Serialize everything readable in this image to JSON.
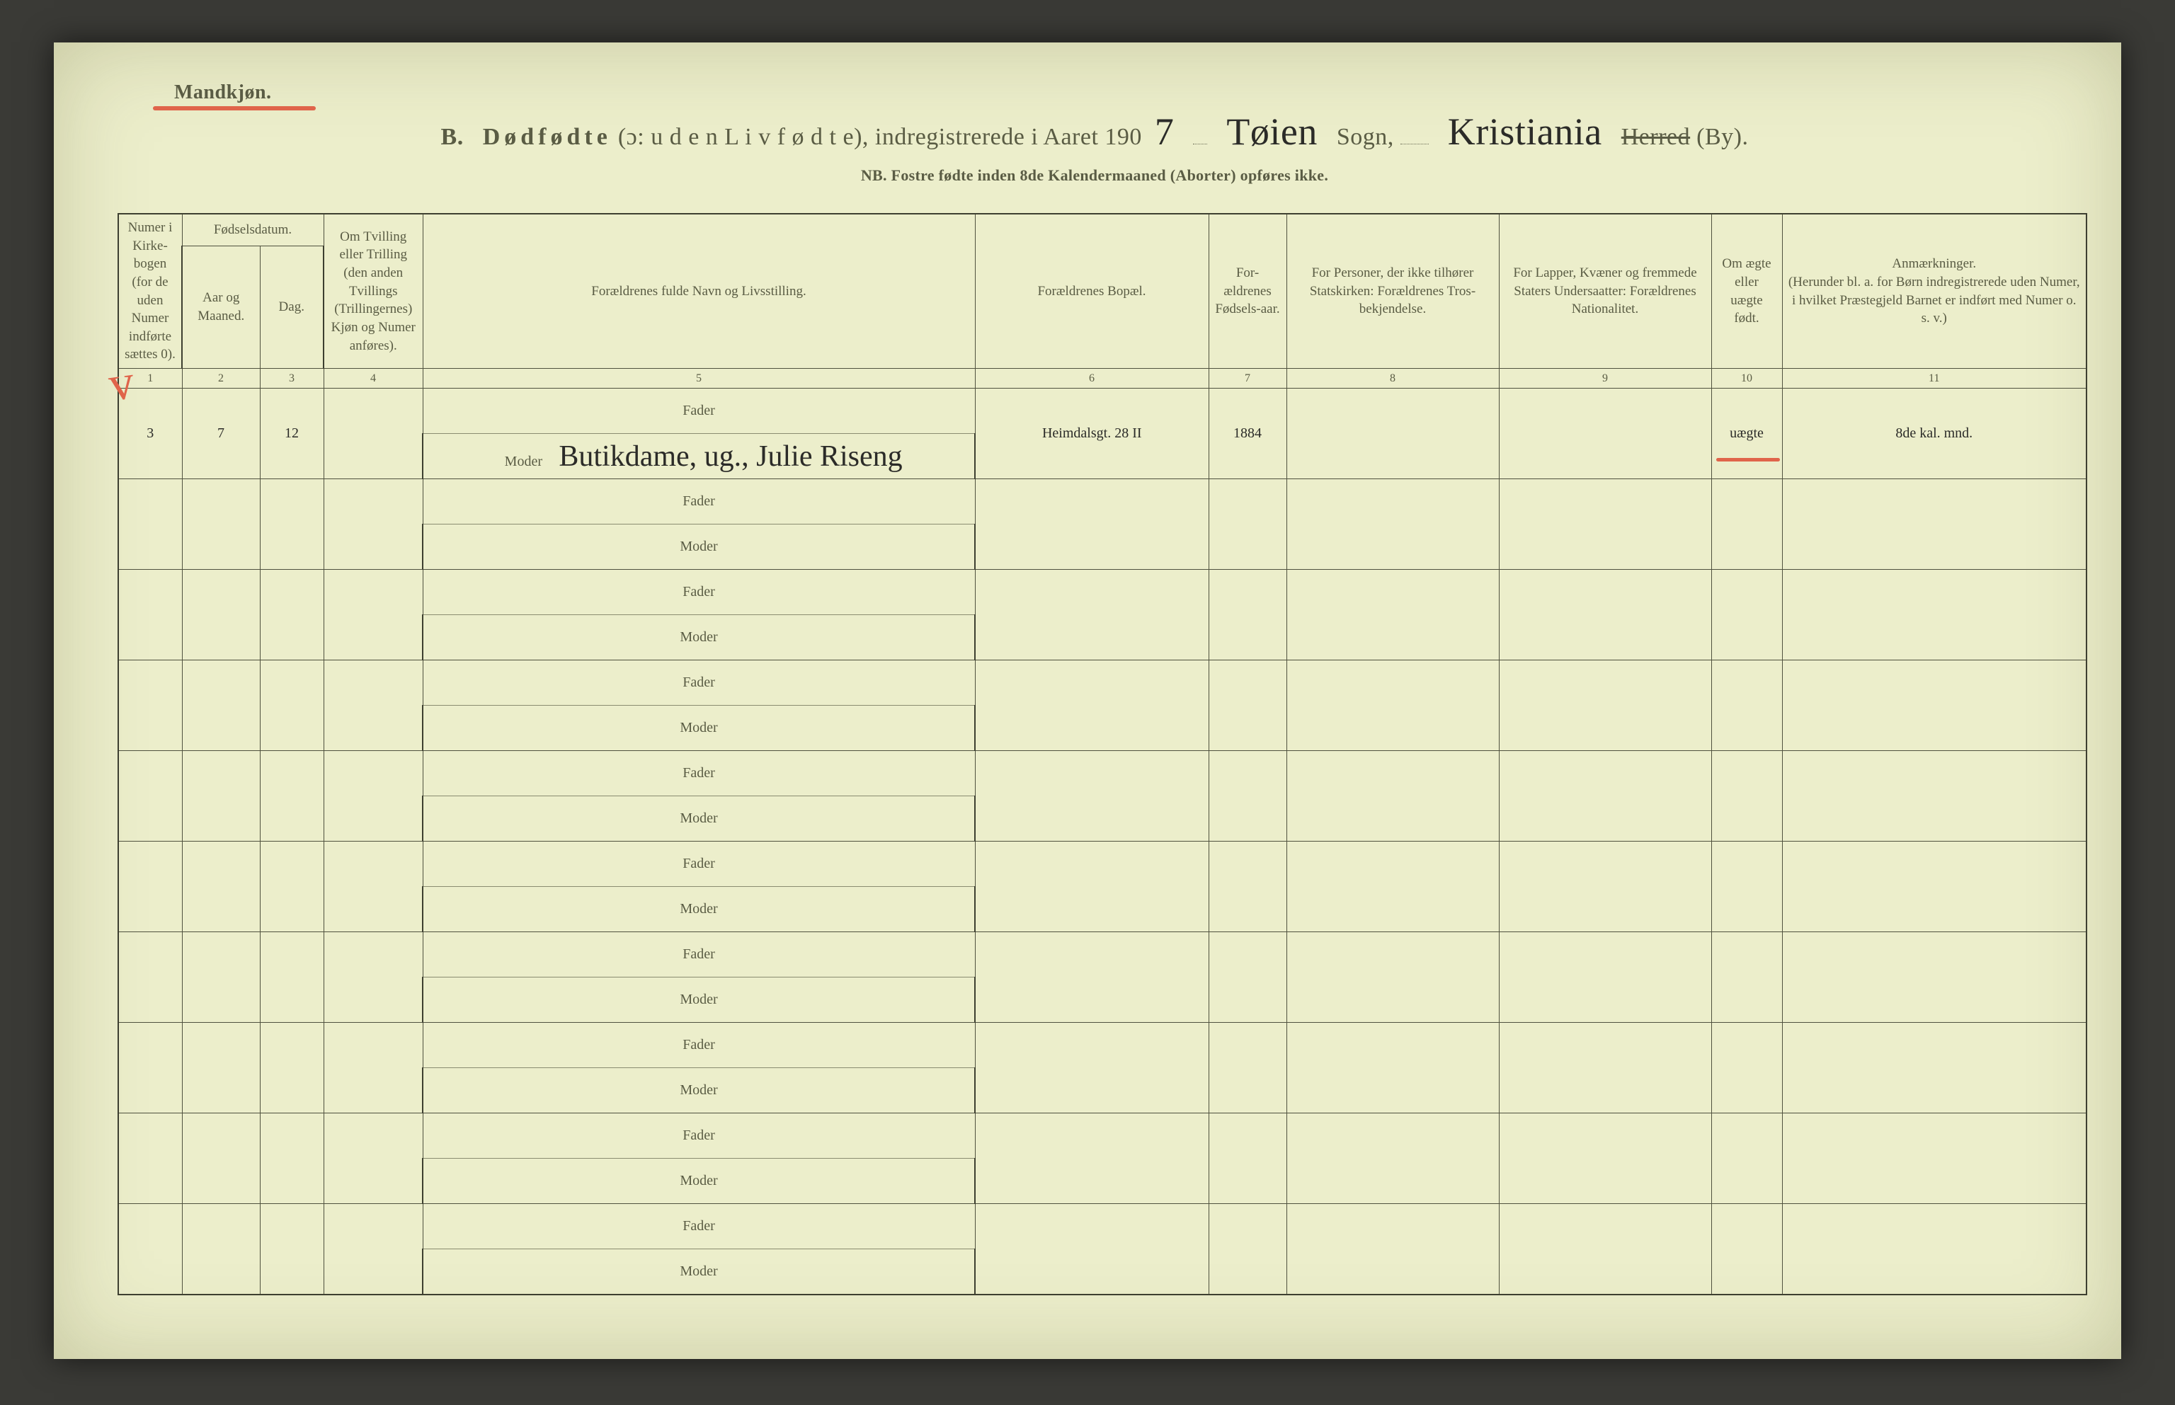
{
  "page": {
    "gender_label": "Mandkjøn.",
    "title_prefix": "B.",
    "title_main": "Dødfødte",
    "title_paren": "(ɔ: u d e n  L i v  f ø d t e),",
    "title_registered": "indregistrerede i Aaret 190",
    "year_suffix_hw": "7",
    "sogn_hw": "Tøien",
    "sogn_label": "Sogn,",
    "herred_hw": "Kristiania",
    "herred_struck": "Herred",
    "herred_by": "(By).",
    "subtitle": "NB.  Fostre fødte inden 8de Kalendermaaned (Aborter) opføres ikke."
  },
  "columns": {
    "c1": "Numer i Kirke-bogen (for de uden Numer indførte sættes 0).",
    "c2_group": "Fødselsdatum.",
    "c2": "Aar og Maaned.",
    "c3": "Dag.",
    "c4": "Om Tvilling eller Trilling (den anden Tvillings (Trillingernes) Kjøn og Numer anføres).",
    "c5": "Forældrenes fulde Navn og Livsstilling.",
    "c6": "Forældrenes Bopæl.",
    "c7": "For-ældrenes Fødsels-aar.",
    "c8": "For Personer, der ikke tilhører Statskirken: Forældrenes Tros-bekjendelse.",
    "c9": "For Lapper, Kvæner og fremmede Staters Undersaatter: Forældrenes Nationalitet.",
    "c10": "Om ægte eller uægte født.",
    "c11": "Anmærkninger.\n(Herunder bl. a. for Børn indregistrerede uden Numer, i hvilket Præstegjeld Barnet er indført med Numer o. s. v.)"
  },
  "colnums": [
    "1",
    "2",
    "3",
    "4",
    "5",
    "6",
    "7",
    "8",
    "9",
    "10",
    "11"
  ],
  "parent_labels": {
    "fader": "Fader",
    "moder": "Moder"
  },
  "num_records": 10,
  "records": [
    {
      "checkmark": true,
      "col1": "3",
      "col2": "7",
      "col3": "12",
      "col4": "",
      "fader": "",
      "moder": "Butikdame, ug., Julie Riseng",
      "col6": "Heimdalsgt. 28 II",
      "col7": "1884",
      "col8": "",
      "col9": "",
      "col10": "uægte",
      "col10_underline": true,
      "col11": "8de kal. mnd."
    }
  ],
  "style": {
    "paper_color": "#eceecb",
    "ink_color": "#5a5c44",
    "handwriting_color": "#2b2b28",
    "red_pencil": "#e0644a",
    "rule_color": "#4f513e",
    "header_fontsize_pt": 19,
    "body_fontsize_pt": 20,
    "hw_fontsize_pt": 44
  }
}
